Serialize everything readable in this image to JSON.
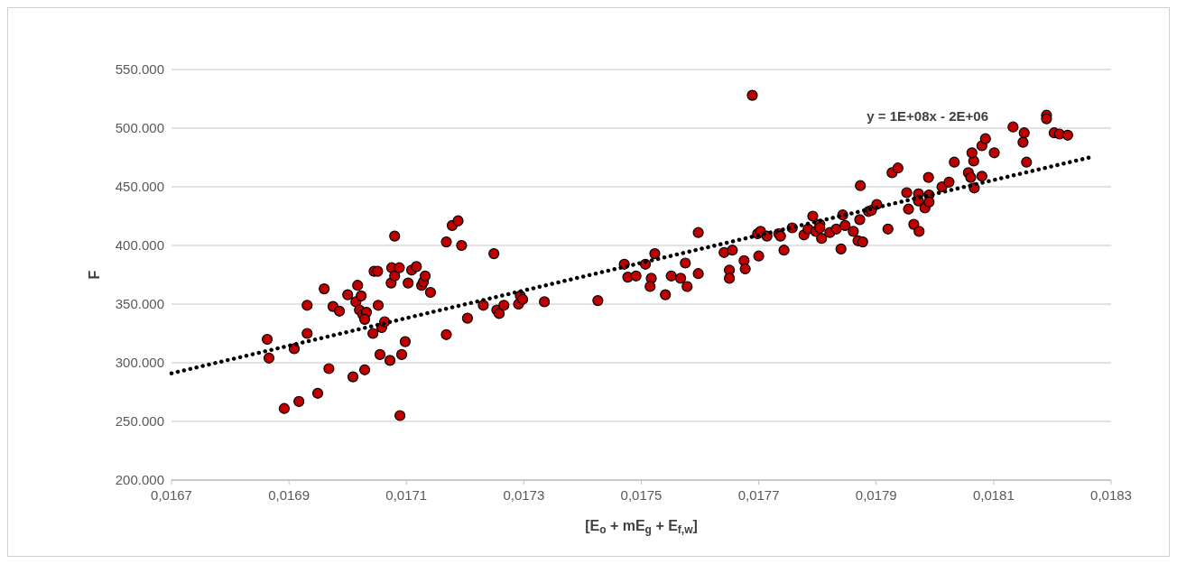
{
  "chart_data": {
    "type": "scatter",
    "xlabel": "[E$_{o}$ + mE$_{g}$ + E$_{f,w}$]",
    "ylabel": "F",
    "annotations": [
      "y = 1E+08x - 2E+06"
    ],
    "xlim": [
      0.0167,
      0.0183
    ],
    "xticks": [
      {
        "value": 0.0167,
        "label": "0,0167"
      },
      {
        "value": 0.0169,
        "label": "0,0169"
      },
      {
        "value": 0.0171,
        "label": "0,0171"
      },
      {
        "value": 0.0173,
        "label": "0,0173"
      },
      {
        "value": 0.0175,
        "label": "0,0175"
      },
      {
        "value": 0.0177,
        "label": "0,0177"
      },
      {
        "value": 0.0179,
        "label": "0,0179"
      },
      {
        "value": 0.0181,
        "label": "0,0181"
      },
      {
        "value": 0.0183,
        "label": "0,0183"
      }
    ],
    "ylim": [
      200000,
      550000
    ],
    "yticks": [
      {
        "value": 200000,
        "label": "200.000"
      },
      {
        "value": 250000,
        "label": "250.000"
      },
      {
        "value": 300000,
        "label": "300.000"
      },
      {
        "value": 350000,
        "label": "350.000"
      },
      {
        "value": 400000,
        "label": "400.000"
      },
      {
        "value": 450000,
        "label": "450.000"
      },
      {
        "value": 500000,
        "label": "500.000"
      },
      {
        "value": 550000,
        "label": "550.000"
      }
    ],
    "grid": "y",
    "marker": "circle",
    "series": [
      {
        "color": "#c00000",
        "x": [
          0.016863,
          0.016866,
          0.016892,
          0.016909,
          0.016917,
          0.016931,
          0.016931,
          0.016949,
          0.01696,
          0.016968,
          0.016975,
          0.016986,
          0.017,
          0.017009,
          0.017014,
          0.017017,
          0.01702,
          0.017023,
          0.017026,
          0.017029,
          0.017032,
          0.017029,
          0.017043,
          0.017045,
          0.017051,
          0.017052,
          0.017055,
          0.017058,
          0.017063,
          0.017072,
          0.017074,
          0.017075,
          0.01708,
          0.01708,
          0.017088,
          0.017092,
          0.017089,
          0.017098,
          0.017103,
          0.017109,
          0.017117,
          0.017126,
          0.017129,
          0.017132,
          0.017141,
          0.017168,
          0.017168,
          0.017178,
          0.017188,
          0.017194,
          0.017204,
          0.017231,
          0.017249,
          0.017254,
          0.017258,
          0.017266,
          0.017291,
          0.017294,
          0.017298,
          0.017335,
          0.017426,
          0.017471,
          0.017477,
          0.017491,
          0.017507,
          0.017523,
          0.017517,
          0.017515,
          0.017541,
          0.017551,
          0.017567,
          0.017575,
          0.017578,
          0.017597,
          0.017597,
          0.017641,
          0.017655,
          0.01765,
          0.01765,
          0.017675,
          0.017677,
          0.0177,
          0.017698,
          0.017703,
          0.017714,
          0.017734,
          0.017737,
          0.017743,
          0.017757,
          0.017777,
          0.017784,
          0.017797,
          0.017804,
          0.017804,
          0.017807,
          0.017821,
          0.017832,
          0.01784,
          0.017843,
          0.017847,
          0.017861,
          0.017872,
          0.017869,
          0.017877,
          0.017792,
          0.017887,
          0.017873,
          0.017892,
          0.017901,
          0.01792,
          0.017927,
          0.017937,
          0.017952,
          0.017955,
          0.017964,
          0.017973,
          0.017972,
          0.017972,
          0.017983,
          0.01799,
          0.01799,
          0.017989,
          0.018012,
          0.018024,
          0.018033,
          0.018057,
          0.018061,
          0.018067,
          0.018066,
          0.018063,
          0.01808,
          0.018086,
          0.01808,
          0.018101,
          0.018133,
          0.018152,
          0.01815,
          0.018156,
          0.01819,
          0.01819,
          0.018203,
          0.018212,
          0.018226,
          0.017689
        ],
        "values": [
          320000,
          304000,
          261000,
          312000,
          267000,
          349000,
          325000,
          274000,
          363000,
          295000,
          348000,
          344000,
          358000,
          288000,
          352000,
          366000,
          345000,
          357000,
          341000,
          294000,
          343000,
          337000,
          325000,
          378000,
          378000,
          349000,
          307000,
          330000,
          335000,
          302000,
          368000,
          381000,
          408000,
          374000,
          381000,
          307000,
          255000,
          318000,
          368000,
          379000,
          382000,
          366000,
          369000,
          374000,
          360000,
          324000,
          403000,
          417000,
          421000,
          400000,
          338000,
          349000,
          393000,
          345000,
          342000,
          349000,
          350000,
          357000,
          354000,
          352000,
          353000,
          384000,
          373000,
          374000,
          384000,
          393000,
          372000,
          365000,
          358000,
          374000,
          372000,
          385000,
          365000,
          411000,
          376000,
          394000,
          396000,
          379000,
          372000,
          387000,
          380000,
          391000,
          410000,
          412000,
          408000,
          410000,
          408000,
          396000,
          415000,
          409000,
          414000,
          412000,
          418000,
          415000,
          406000,
          411000,
          414000,
          397000,
          426000,
          417000,
          412000,
          422000,
          404000,
          403000,
          425000,
          429000,
          451000,
          430000,
          435000,
          414000,
          462000,
          466000,
          445000,
          431000,
          418000,
          412000,
          444000,
          438000,
          432000,
          443000,
          437000,
          458000,
          450000,
          454000,
          471000,
          462000,
          458000,
          449000,
          472000,
          479000,
          485000,
          491000,
          459000,
          479000,
          501000,
          496000,
          488000,
          471000,
          511000,
          508000,
          496000,
          495000,
          494000,
          528000
        ]
      },
      {
        "type": "line",
        "color": "#000000",
        "line_style": "dotted",
        "marker": "none",
        "x": [
          0.0167,
          0.018272
        ],
        "values": [
          291000,
          476000
        ]
      }
    ]
  }
}
